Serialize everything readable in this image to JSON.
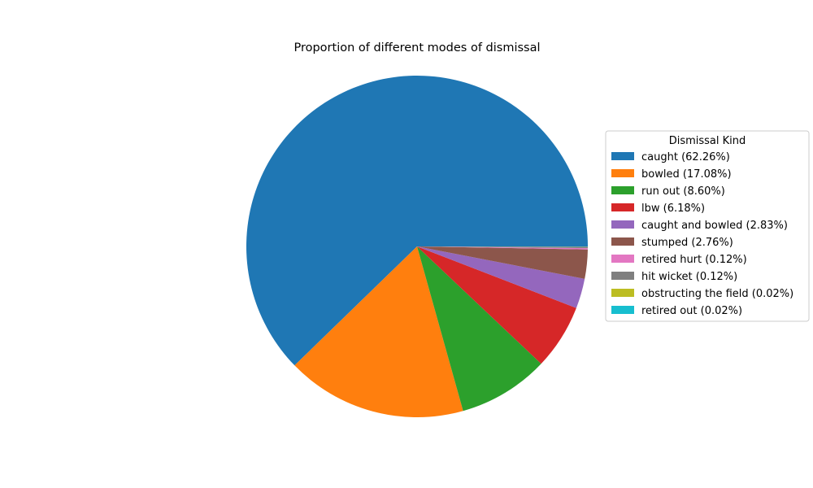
{
  "chart_data": {
    "type": "pie",
    "title": "Proportion of different modes of dismissal",
    "legend_title": "Dismissal Kind",
    "legend_position": "right",
    "start_angle_deg": 0,
    "direction": "counterclockwise",
    "slices": [
      {
        "label": "caught",
        "value": 62.26,
        "legend": "caught (62.26%)",
        "color": "#1f77b4"
      },
      {
        "label": "bowled",
        "value": 17.08,
        "legend": "bowled (17.08%)",
        "color": "#ff7f0e"
      },
      {
        "label": "run out",
        "value": 8.6,
        "legend": "run out (8.60%)",
        "color": "#2ca02c"
      },
      {
        "label": "lbw",
        "value": 6.18,
        "legend": "lbw (6.18%)",
        "color": "#d62728"
      },
      {
        "label": "caught and bowled",
        "value": 2.83,
        "legend": "caught and bowled (2.83%)",
        "color": "#9467bd"
      },
      {
        "label": "stumped",
        "value": 2.76,
        "legend": "stumped (2.76%)",
        "color": "#8c564b"
      },
      {
        "label": "retired hurt",
        "value": 0.12,
        "legend": "retired hurt (0.12%)",
        "color": "#e377c2"
      },
      {
        "label": "hit wicket",
        "value": 0.12,
        "legend": "hit wicket (0.12%)",
        "color": "#7f7f7f"
      },
      {
        "label": "obstructing the field",
        "value": 0.02,
        "legend": "obstructing the field (0.02%)",
        "color": "#bcbd22"
      },
      {
        "label": "retired out",
        "value": 0.02,
        "legend": "retired out (0.02%)",
        "color": "#17becf"
      }
    ]
  }
}
